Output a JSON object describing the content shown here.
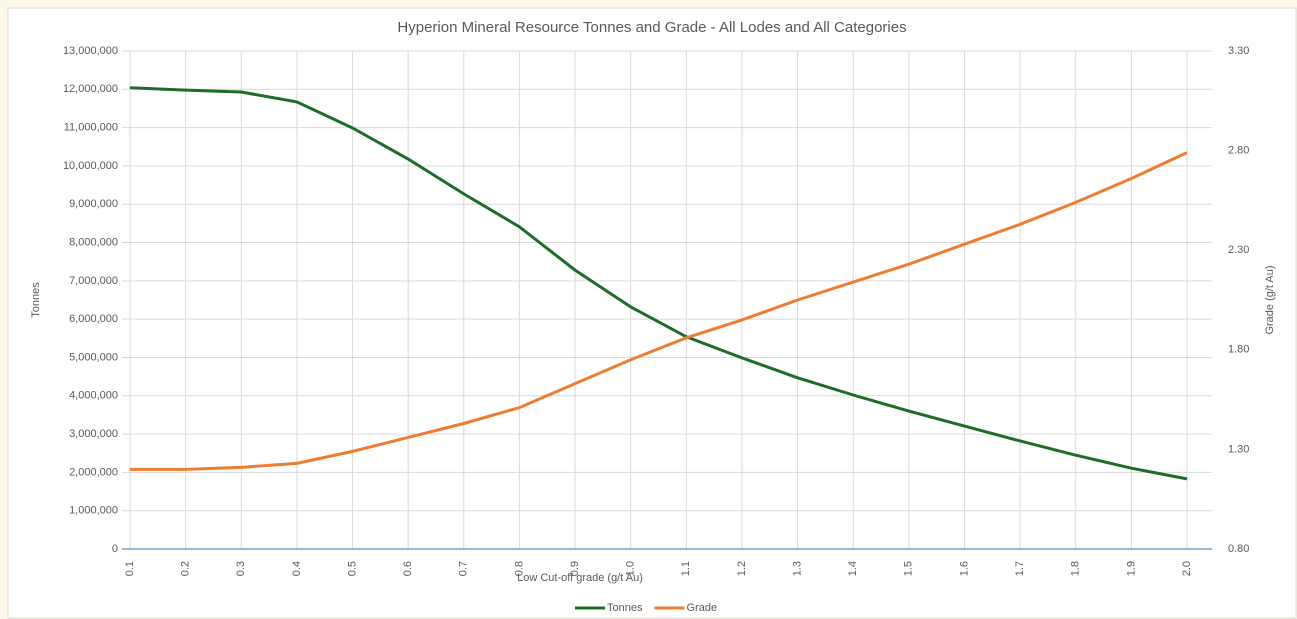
{
  "chart_data": {
    "type": "line",
    "title": "Hyperion Mineral Resource Tonnes and Grade - All Lodes and All Categories",
    "x_label": "Low Cut-off grade (g/t Au)",
    "y_label": "Tonnes",
    "y2_label": "Grade (g/t Au)",
    "categories": [
      "0.1",
      "0.2",
      "0.3",
      "0.4",
      "0.5",
      "0.6",
      "0.7",
      "0.8",
      "0.9",
      "1.0",
      "1.1",
      "1.2",
      "1.3",
      "1.4",
      "1.5",
      "1.6",
      "1.7",
      "1.8",
      "1.9",
      "2.0"
    ],
    "series": [
      {
        "name": "Tonnes",
        "color": "#1e6b2a",
        "values": [
          12040000,
          11980000,
          11930000,
          11670000,
          10990000,
          10180000,
          9270000,
          8410000,
          7280000,
          6320000,
          5540000,
          4990000,
          4470000,
          4020000,
          3600000,
          3210000,
          2820000,
          2450000,
          2110000,
          1830000
        ]
      },
      {
        "name": "Grade",
        "color": "#ed7d31",
        "axis": "y2",
        "values": [
          1.2,
          1.2,
          1.21,
          1.23,
          1.29,
          1.36,
          1.43,
          1.51,
          1.63,
          1.75,
          1.86,
          1.95,
          2.05,
          2.14,
          2.23,
          2.33,
          2.43,
          2.54,
          2.66,
          2.79
        ]
      }
    ],
    "ylim": [
      0,
      13000000
    ],
    "yticks": [
      0,
      {
        "value": 1000000,
        "label": "1,000,000"
      },
      {
        "value": 2000000,
        "label": "2,000,000"
      },
      {
        "value": 3000000,
        "label": "3,000,000"
      },
      {
        "value": 4000000,
        "label": "4,000,000"
      },
      {
        "value": 5000000,
        "label": "5,000,000"
      },
      {
        "value": 6000000,
        "label": "6,000,000"
      },
      {
        "value": 7000000,
        "label": "7,000,000"
      },
      {
        "value": 8000000,
        "label": "8,000,000"
      },
      {
        "value": 9000000,
        "label": "9,000,000"
      },
      {
        "value": 10000000,
        "label": "10,000,000"
      },
      {
        "value": 11000000,
        "label": "11,000,000"
      },
      {
        "value": 12000000,
        "label": "12,000,000"
      },
      {
        "value": 13000000,
        "label": "13,000,000"
      }
    ],
    "y2lim": [
      0.8,
      3.3
    ],
    "y2ticks": [
      {
        "value": 0.8,
        "label": "0.80"
      },
      {
        "value": 1.3,
        "label": "1.30"
      },
      {
        "value": 1.8,
        "label": "1.80"
      },
      {
        "value": 2.3,
        "label": "2.30"
      },
      {
        "value": 2.8,
        "label": "2.80"
      },
      {
        "value": 3.3,
        "label": "3.30"
      }
    ],
    "grid": true,
    "legend": "bottom"
  }
}
